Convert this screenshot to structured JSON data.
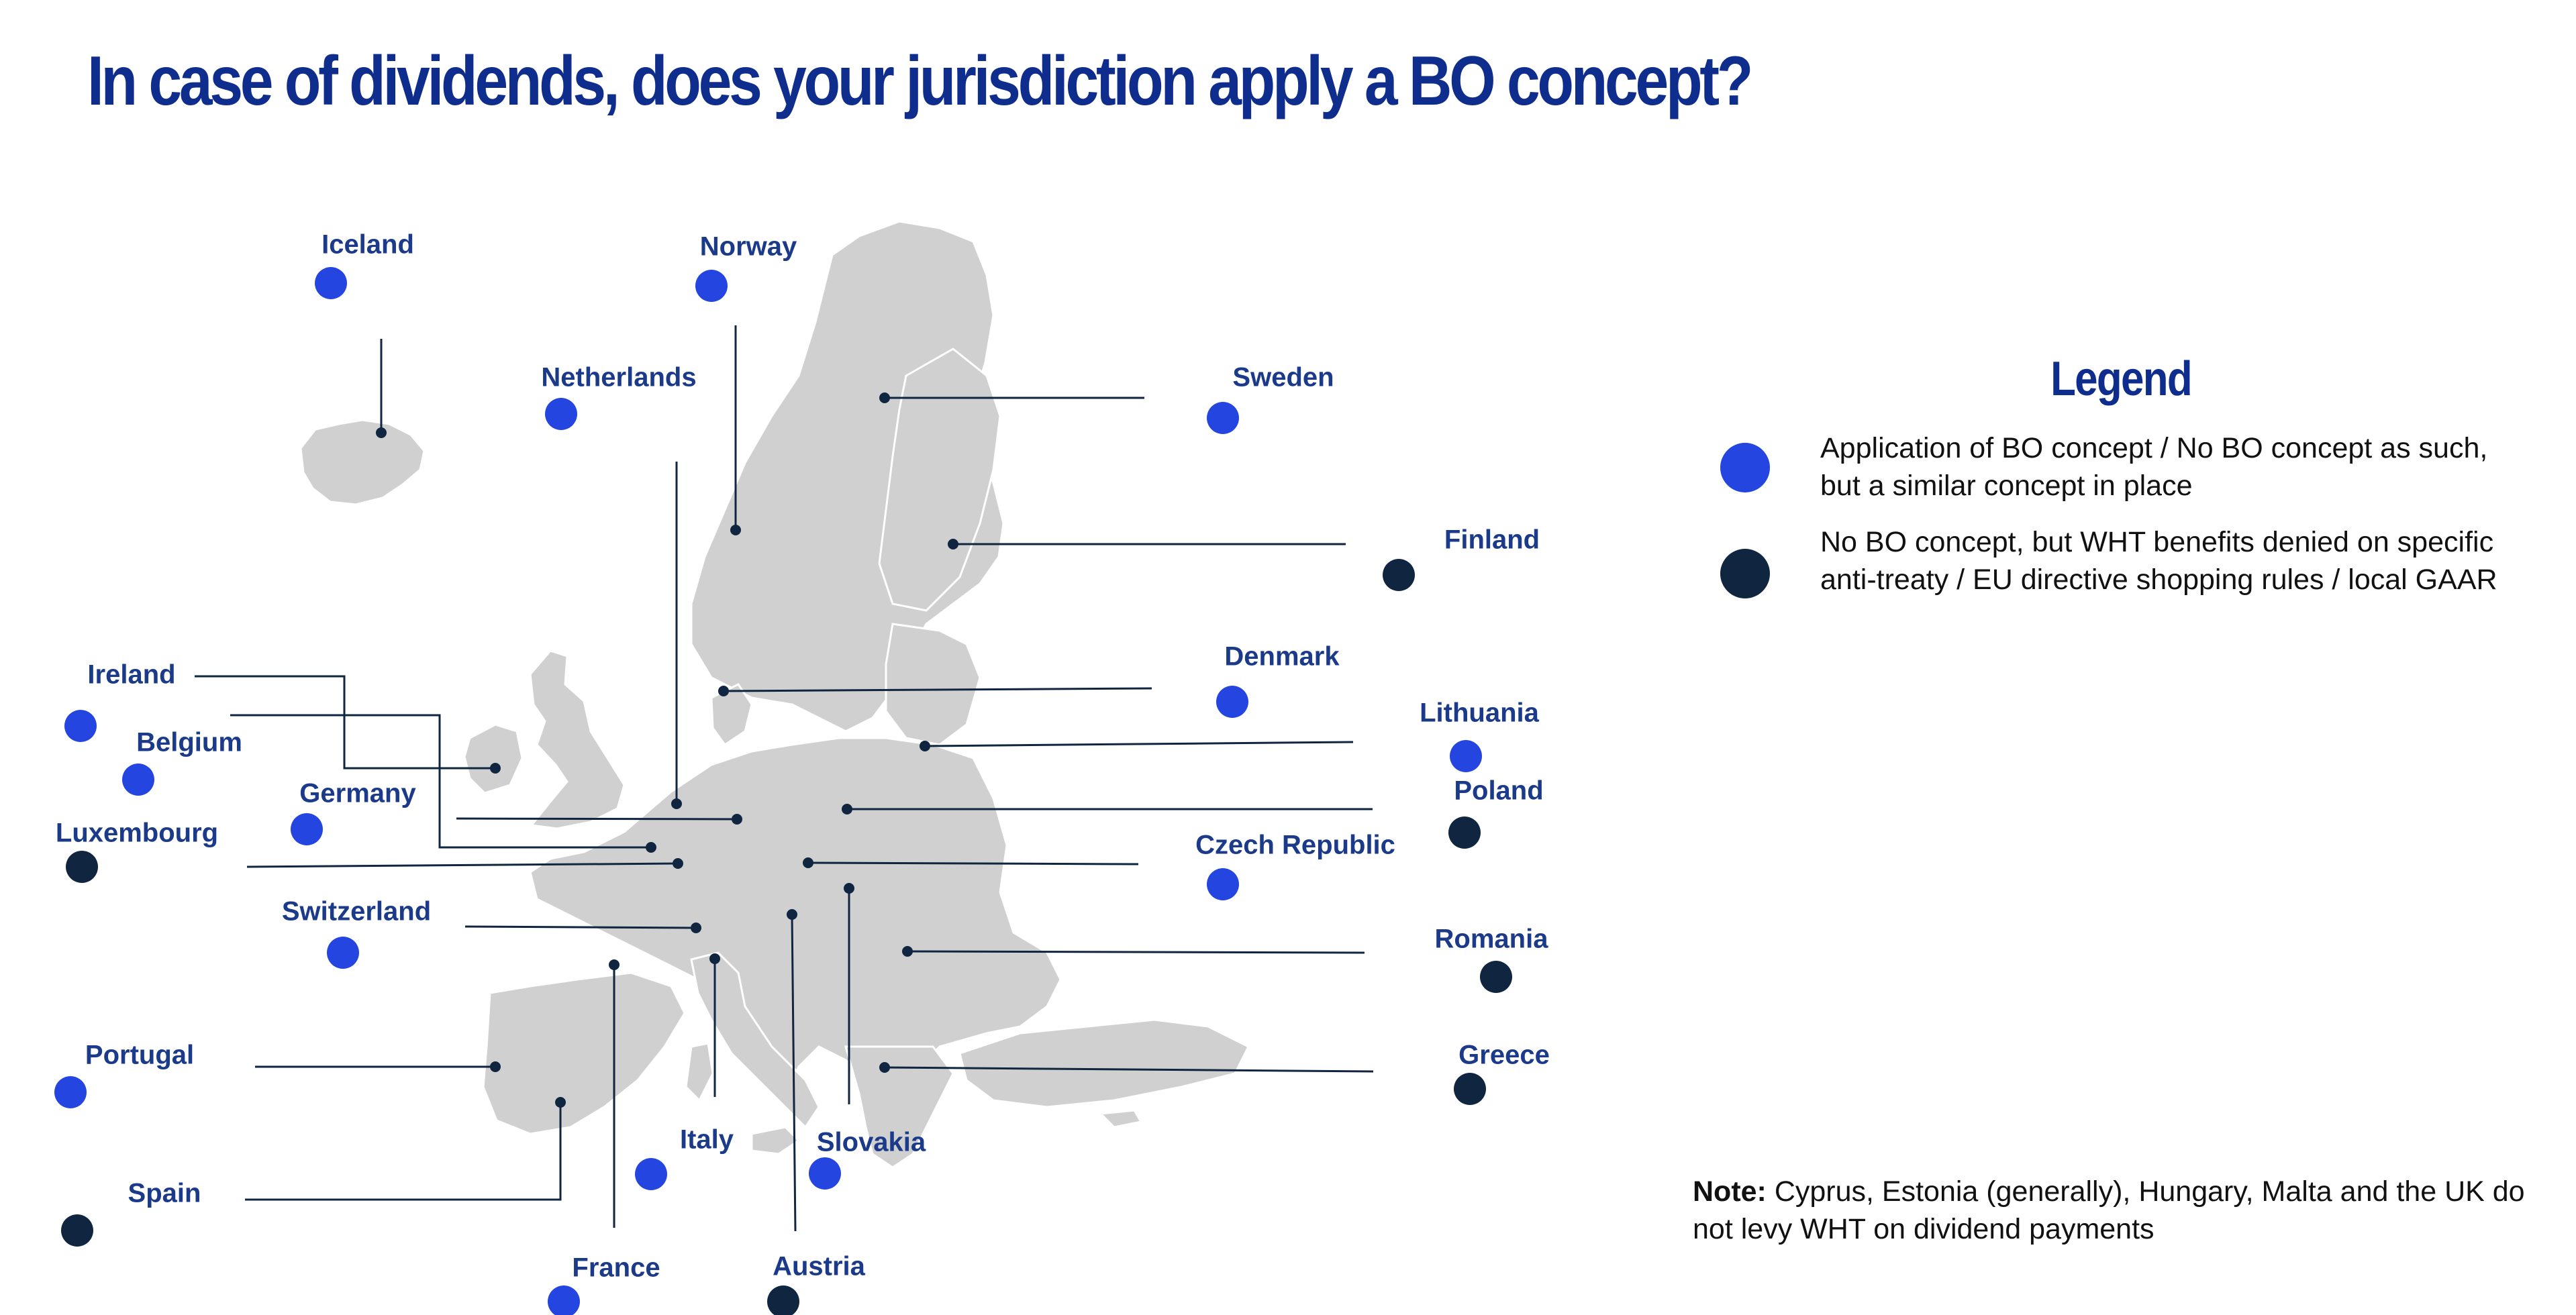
{
  "title": "In case of dividends, does your jurisdiction apply a BO concept?",
  "colors": {
    "title": "#0f2d8c",
    "label": "#1b3a8a",
    "bo_concept": "#2445e0",
    "no_bo_concept": "#0f2540",
    "land": "#d0d0d0",
    "leader_line": "#0f2540"
  },
  "legend": {
    "title": "Legend",
    "items": [
      {
        "key": "bo",
        "color": "#2445e0",
        "text": "Application of BO concept  / No BO concept as such, but a similar concept in place"
      },
      {
        "key": "no_bo",
        "color": "#0f2540",
        "text": "No BO concept, but WHT benefits denied on specific anti-treaty / EU directive shopping rules / local GAAR"
      }
    ]
  },
  "countries": [
    {
      "name": "Iceland",
      "category": "bo"
    },
    {
      "name": "Norway",
      "category": "bo"
    },
    {
      "name": "Netherlands",
      "category": "bo"
    },
    {
      "name": "Sweden",
      "category": "bo"
    },
    {
      "name": "Finland",
      "category": "no_bo"
    },
    {
      "name": "Ireland",
      "category": "bo"
    },
    {
      "name": "Belgium",
      "category": "bo"
    },
    {
      "name": "Denmark",
      "category": "bo"
    },
    {
      "name": "Lithuania",
      "category": "bo"
    },
    {
      "name": "Germany",
      "category": "bo"
    },
    {
      "name": "Poland",
      "category": "no_bo"
    },
    {
      "name": "Luxembourg",
      "category": "no_bo"
    },
    {
      "name": "Czech Republic",
      "category": "bo"
    },
    {
      "name": "Switzerland",
      "category": "bo"
    },
    {
      "name": "Romania",
      "category": "no_bo"
    },
    {
      "name": "Portugal",
      "category": "bo"
    },
    {
      "name": "Greece",
      "category": "no_bo"
    },
    {
      "name": "Italy",
      "category": "bo"
    },
    {
      "name": "Slovakia",
      "category": "bo"
    },
    {
      "name": "Spain",
      "category": "no_bo"
    },
    {
      "name": "France",
      "category": "bo"
    },
    {
      "name": "Austria",
      "category": "no_bo"
    }
  ],
  "note": {
    "label": "Note:",
    "text": "Cyprus, Estonia (generally), Hungary, Malta and the UK do not levy WHT on dividend payments"
  }
}
